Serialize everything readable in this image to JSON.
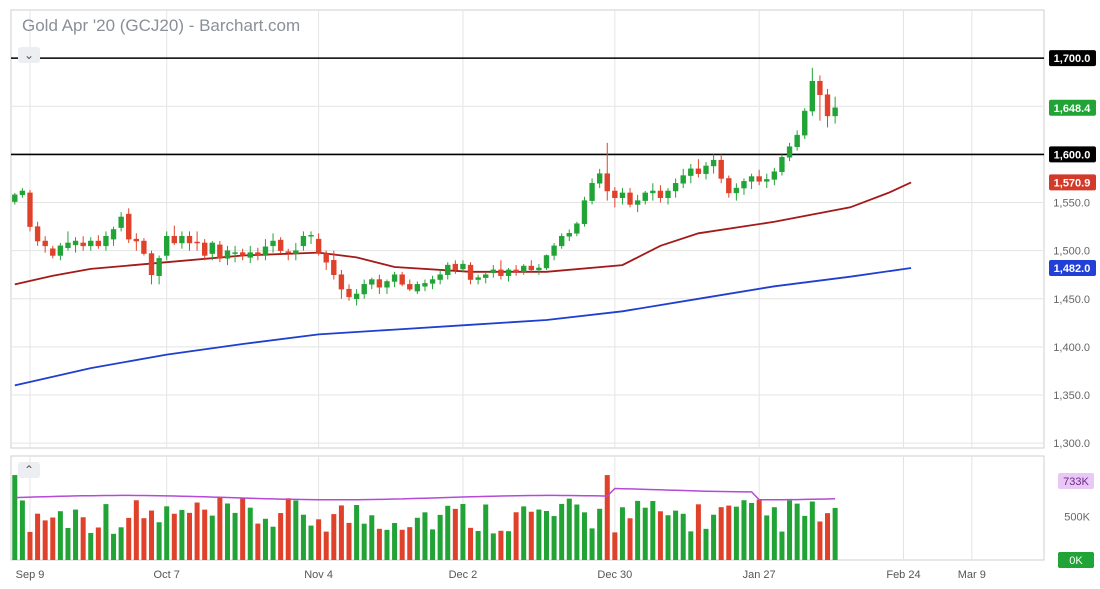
{
  "title": "Gold Apr '20 (GCJ20) - Barchart.com",
  "controls": {
    "collapse_price": "⌄",
    "collapse_volume": "⌃"
  },
  "colors": {
    "up": "#21a336",
    "down": "#e0412a",
    "ma50": "#a31a1a",
    "ma200": "#1f3fcf",
    "volume_avg": "#b44ad6",
    "hline": "#000000",
    "grid": "#e4e4e4",
    "label_up": "#21a336",
    "label_down": "#d23a2a",
    "label_blue": "#2340d6"
  },
  "chart_data": {
    "type": "candlestick",
    "title": "Gold Apr '20 (GCJ20) - Barchart.com",
    "price_axis": {
      "ticks": [
        "1,300.0",
        "1,350.0",
        "1,400.0",
        "1,450.0",
        "1,500.0",
        "1,550.0",
        "1,600.0",
        "1,650.0",
        "1,700.0"
      ],
      "tick_values": [
        1300,
        1350,
        1400,
        1450,
        1500,
        1550,
        1600,
        1650,
        1700
      ],
      "ylim": [
        1295,
        1750
      ]
    },
    "x_axis": {
      "labels": [
        "Sep 9",
        "Oct 7",
        "Nov 4",
        "Dec 2",
        "Dec 30",
        "Jan 27",
        "Feb 24",
        "Mar 9"
      ],
      "label_bars": [
        2,
        20,
        40,
        59,
        79,
        98,
        117,
        126
      ],
      "bar_count": 136
    },
    "horizontal_lines": [
      1700,
      1600
    ],
    "price_labels": [
      {
        "text": "1,700.0",
        "value": 1700,
        "style": "black"
      },
      {
        "text": "1,648.4",
        "value": 1648.4,
        "style": "up"
      },
      {
        "text": "1,600.0",
        "value": 1600,
        "style": "black"
      },
      {
        "text": "1,570.9",
        "value": 1570.9,
        "style": "down"
      },
      {
        "text": "1,482.0",
        "value": 1482.0,
        "style": "blue"
      }
    ],
    "moving_average_50": {
      "name": "",
      "points": [
        [
          0,
          1465
        ],
        [
          5,
          1474
        ],
        [
          10,
          1481
        ],
        [
          20,
          1488
        ],
        [
          30,
          1495
        ],
        [
          40,
          1498
        ],
        [
          45,
          1493
        ],
        [
          50,
          1483
        ],
        [
          60,
          1478
        ],
        [
          70,
          1478
        ],
        [
          80,
          1485
        ],
        [
          85,
          1505
        ],
        [
          90,
          1518
        ],
        [
          100,
          1530
        ],
        [
          110,
          1545
        ],
        [
          115,
          1560
        ],
        [
          118,
          1570.9
        ]
      ]
    },
    "moving_average_200": {
      "name": "",
      "points": [
        [
          0,
          1360
        ],
        [
          10,
          1378
        ],
        [
          20,
          1392
        ],
        [
          30,
          1403
        ],
        [
          40,
          1413
        ],
        [
          50,
          1418
        ],
        [
          60,
          1423
        ],
        [
          70,
          1428
        ],
        [
          80,
          1437
        ],
        [
          90,
          1450
        ],
        [
          100,
          1463
        ],
        [
          110,
          1473
        ],
        [
          118,
          1482
        ]
      ]
    },
    "candles": [
      [
        1551,
        1560,
        1548,
        1558
      ],
      [
        1558,
        1565,
        1555,
        1562
      ],
      [
        1560,
        1563,
        1520,
        1525
      ],
      [
        1525,
        1530,
        1505,
        1510
      ],
      [
        1510,
        1515,
        1498,
        1505
      ],
      [
        1502,
        1505,
        1492,
        1495
      ],
      [
        1495,
        1508,
        1490,
        1505
      ],
      [
        1503,
        1520,
        1500,
        1508
      ],
      [
        1506,
        1514,
        1498,
        1510
      ],
      [
        1508,
        1515,
        1500,
        1505
      ],
      [
        1505,
        1514,
        1500,
        1510
      ],
      [
        1510,
        1516,
        1502,
        1505
      ],
      [
        1505,
        1520,
        1500,
        1515
      ],
      [
        1512,
        1525,
        1505,
        1522
      ],
      [
        1524,
        1540,
        1520,
        1535
      ],
      [
        1538,
        1544,
        1508,
        1512
      ],
      [
        1512,
        1518,
        1500,
        1510
      ],
      [
        1510,
        1513,
        1495,
        1497
      ],
      [
        1497,
        1500,
        1465,
        1475
      ],
      [
        1474,
        1495,
        1465,
        1492
      ],
      [
        1495,
        1520,
        1490,
        1515
      ],
      [
        1515,
        1526,
        1506,
        1508
      ],
      [
        1508,
        1520,
        1502,
        1515
      ],
      [
        1515,
        1520,
        1500,
        1508
      ],
      [
        1509,
        1520,
        1500,
        1508
      ],
      [
        1508,
        1512,
        1490,
        1495
      ],
      [
        1497,
        1510,
        1490,
        1508
      ],
      [
        1506,
        1510,
        1488,
        1492
      ],
      [
        1492,
        1505,
        1485,
        1500
      ],
      [
        1498,
        1505,
        1488,
        1498
      ],
      [
        1498,
        1502,
        1490,
        1495
      ],
      [
        1493,
        1505,
        1487,
        1498
      ],
      [
        1498,
        1503,
        1490,
        1495
      ],
      [
        1495,
        1512,
        1490,
        1504
      ],
      [
        1505,
        1518,
        1498,
        1510
      ],
      [
        1511,
        1514,
        1497,
        1500
      ],
      [
        1499,
        1502,
        1490,
        1498
      ],
      [
        1497,
        1508,
        1490,
        1500
      ],
      [
        1505,
        1520,
        1500,
        1515
      ],
      [
        1515,
        1520,
        1507,
        1516
      ],
      [
        1512,
        1518,
        1495,
        1498
      ],
      [
        1497,
        1500,
        1480,
        1488
      ],
      [
        1490,
        1500,
        1470,
        1475
      ],
      [
        1475,
        1480,
        1450,
        1460
      ],
      [
        1460,
        1465,
        1448,
        1452
      ],
      [
        1450,
        1460,
        1443,
        1455
      ],
      [
        1455,
        1470,
        1450,
        1465
      ],
      [
        1465,
        1472,
        1460,
        1470
      ],
      [
        1470,
        1475,
        1455,
        1462
      ],
      [
        1462,
        1470,
        1455,
        1468
      ],
      [
        1468,
        1478,
        1462,
        1475
      ],
      [
        1475,
        1478,
        1463,
        1465
      ],
      [
        1465,
        1470,
        1458,
        1460
      ],
      [
        1458,
        1468,
        1455,
        1465
      ],
      [
        1463,
        1470,
        1458,
        1466
      ],
      [
        1466,
        1474,
        1460,
        1470
      ],
      [
        1470,
        1480,
        1465,
        1475
      ],
      [
        1475,
        1488,
        1470,
        1485
      ],
      [
        1486,
        1490,
        1476,
        1480
      ],
      [
        1481,
        1490,
        1478,
        1486
      ],
      [
        1485,
        1488,
        1465,
        1470
      ],
      [
        1470,
        1475,
        1465,
        1472
      ],
      [
        1472,
        1478,
        1466,
        1475
      ],
      [
        1477,
        1485,
        1472,
        1480
      ],
      [
        1480,
        1490,
        1470,
        1474
      ],
      [
        1474,
        1482,
        1468,
        1480
      ],
      [
        1480,
        1485,
        1474,
        1478
      ],
      [
        1478,
        1486,
        1475,
        1484
      ],
      [
        1484,
        1490,
        1478,
        1480
      ],
      [
        1480,
        1486,
        1475,
        1482
      ],
      [
        1482,
        1496,
        1480,
        1495
      ],
      [
        1495,
        1508,
        1490,
        1505
      ],
      [
        1505,
        1518,
        1502,
        1515
      ],
      [
        1515,
        1522,
        1510,
        1518
      ],
      [
        1518,
        1530,
        1515,
        1528
      ],
      [
        1528,
        1556,
        1525,
        1552
      ],
      [
        1552,
        1575,
        1548,
        1570
      ],
      [
        1570,
        1585,
        1565,
        1580
      ],
      [
        1580,
        1612,
        1552,
        1562
      ],
      [
        1562,
        1566,
        1545,
        1555
      ],
      [
        1555,
        1565,
        1548,
        1560
      ],
      [
        1560,
        1565,
        1545,
        1548
      ],
      [
        1548,
        1558,
        1540,
        1552
      ],
      [
        1552,
        1562,
        1548,
        1560
      ],
      [
        1560,
        1570,
        1552,
        1562
      ],
      [
        1562,
        1568,
        1550,
        1555
      ],
      [
        1555,
        1565,
        1548,
        1562
      ],
      [
        1562,
        1575,
        1555,
        1570
      ],
      [
        1570,
        1585,
        1565,
        1578
      ],
      [
        1578,
        1590,
        1570,
        1585
      ],
      [
        1585,
        1595,
        1576,
        1580
      ],
      [
        1580,
        1592,
        1574,
        1588
      ],
      [
        1588,
        1600,
        1580,
        1594
      ],
      [
        1594,
        1600,
        1570,
        1575
      ],
      [
        1575,
        1578,
        1555,
        1560
      ],
      [
        1560,
        1570,
        1552,
        1565
      ],
      [
        1565,
        1575,
        1558,
        1572
      ],
      [
        1572,
        1580,
        1564,
        1577
      ],
      [
        1577,
        1584,
        1568,
        1572
      ],
      [
        1572,
        1580,
        1565,
        1574
      ],
      [
        1574,
        1586,
        1568,
        1582
      ],
      [
        1582,
        1600,
        1578,
        1597
      ],
      [
        1597,
        1612,
        1593,
        1608
      ],
      [
        1608,
        1625,
        1604,
        1620
      ],
      [
        1620,
        1648,
        1616,
        1645
      ],
      [
        1645,
        1690,
        1640,
        1676
      ],
      [
        1676,
        1682,
        1635,
        1662
      ],
      [
        1662,
        1668,
        1628,
        1640
      ],
      [
        1640,
        1660,
        1632,
        1648.4
      ]
    ],
    "candle_start_bar": 0,
    "volume_axis": {
      "ticks": [
        "500K"
      ],
      "tick_values": [
        500000
      ],
      "ylim": [
        0,
        1200000
      ]
    },
    "volume_labels": [
      {
        "text": "733K",
        "style": "purple"
      },
      {
        "text": "0K",
        "style": "up"
      }
    ]
  }
}
